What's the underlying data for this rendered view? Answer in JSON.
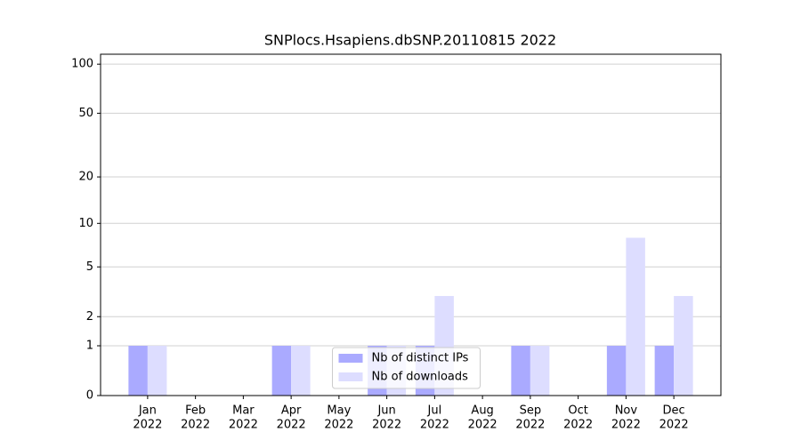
{
  "chart_data": {
    "type": "bar",
    "title": "SNPlocs.Hsapiens.dbSNP.20110815 2022",
    "categories": [
      [
        "Jan",
        "2022"
      ],
      [
        "Feb",
        "2022"
      ],
      [
        "Mar",
        "2022"
      ],
      [
        "Apr",
        "2022"
      ],
      [
        "May",
        "2022"
      ],
      [
        "Jun",
        "2022"
      ],
      [
        "Jul",
        "2022"
      ],
      [
        "Aug",
        "2022"
      ],
      [
        "Sep",
        "2022"
      ],
      [
        "Oct",
        "2022"
      ],
      [
        "Nov",
        "2022"
      ],
      [
        "Dec",
        "2022"
      ]
    ],
    "series": [
      {
        "name": "Nb of distinct IPs",
        "color": "#aaaaff",
        "values": [
          1,
          0,
          0,
          1,
          0,
          1,
          1,
          0,
          1,
          0,
          1,
          1
        ]
      },
      {
        "name": "Nb of downloads",
        "color": "#ddddff",
        "values": [
          1,
          0,
          0,
          1,
          0,
          1,
          3,
          0,
          1,
          0,
          8,
          3
        ]
      }
    ],
    "yscale": "log1p",
    "ylim": [
      0,
      115
    ],
    "yticks": [
      0,
      1,
      2,
      5,
      10,
      20,
      50,
      100
    ],
    "grid": true,
    "legend": "lower center"
  }
}
